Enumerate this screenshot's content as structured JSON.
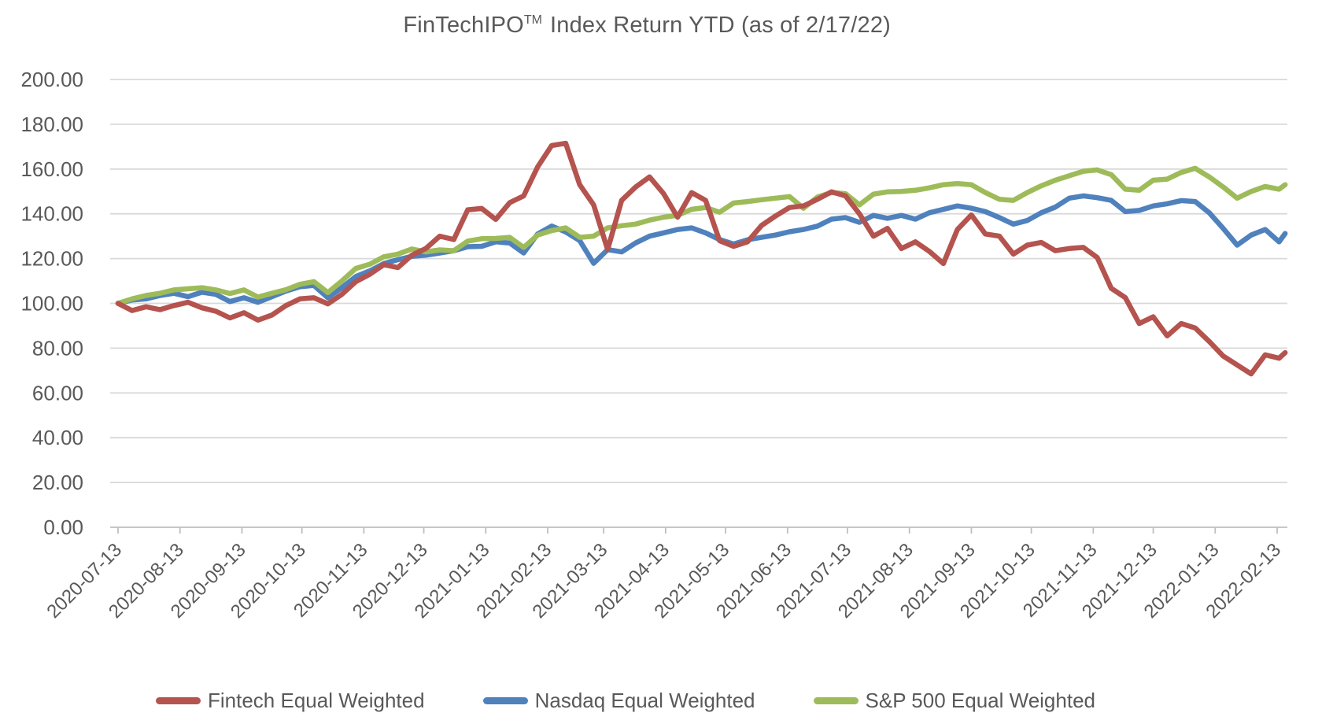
{
  "title": {
    "main": "FinTechIPO",
    "tm": "TM",
    "rest": "Index Return YTD (as of 2/17/22)"
  },
  "colors": {
    "fintech": "#B5534E",
    "nasdaq": "#4F81BD",
    "sp500": "#9EBB59",
    "gridline": "#D9D9D9",
    "axis_line": "#BFBFBF",
    "axis_text": "#595959",
    "background": "#FFFFFF"
  },
  "chart_data": {
    "type": "line",
    "title": "FinTechIPO(TM) Index Return YTD (as of 2/17/22)",
    "xlabel": "",
    "ylabel": "",
    "ylim": [
      0,
      200
    ],
    "grid": "horizontal",
    "legend_position": "bottom",
    "y_axis": {
      "min": 0,
      "max": 200,
      "step": 20,
      "tick_labels": [
        "0.00",
        "20.00",
        "40.00",
        "60.00",
        "80.00",
        "100.00",
        "120.00",
        "140.00",
        "160.00",
        "180.00",
        "200.00"
      ]
    },
    "x_axis": {
      "start_date": "2020-07-13",
      "end_date": "2022-02-17",
      "total_days": 584,
      "tick_labels": [
        "2020-07-13",
        "2020-08-13",
        "2020-09-13",
        "2020-10-13",
        "2020-11-13",
        "2020-12-13",
        "2021-01-13",
        "2021-02-13",
        "2021-03-13",
        "2021-04-13",
        "2021-05-13",
        "2021-06-13",
        "2021-07-13",
        "2021-08-13",
        "2021-09-13",
        "2021-10-13",
        "2021-11-13",
        "2021-12-13",
        "2022-01-13",
        "2022-02-13"
      ],
      "tick_day_offsets": [
        0,
        31,
        62,
        92,
        123,
        153,
        184,
        215,
        243,
        274,
        304,
        335,
        365,
        396,
        427,
        457,
        488,
        518,
        549,
        580
      ]
    },
    "sample_interval_days": 7,
    "series": [
      {
        "name": "Fintech Equal Weighted",
        "color": "#B5534E",
        "values": [
          100,
          96.8,
          98.5,
          97.2,
          99,
          100.5,
          98,
          96.5,
          93.5,
          95.8,
          92.5,
          94.8,
          99,
          102,
          102.5,
          99.8,
          104,
          109.7,
          113,
          117.3,
          116,
          121.5,
          124.5,
          130,
          128.5,
          141.8,
          142.4,
          137.5,
          145,
          148,
          161,
          170.5,
          171.5,
          153,
          144,
          124,
          146,
          152,
          156.5,
          149,
          138.5,
          149.5,
          146,
          128,
          125.5,
          127.5,
          134.8,
          139,
          142.8,
          143.5,
          146.5,
          149.8,
          148,
          140,
          130,
          133.5,
          124.5,
          127.5,
          123.2,
          117.8,
          133,
          139.5,
          131,
          130,
          122,
          126,
          127.2,
          123.5,
          124.5,
          125,
          120.5,
          106.7,
          102.6,
          91,
          94,
          85.5,
          91,
          89,
          83,
          76.5,
          72.5,
          68.5,
          77,
          75.5,
          78
        ]
      },
      {
        "name": "Nasdaq Equal Weighted",
        "color": "#4F81BD",
        "values": [
          100,
          101.5,
          102,
          103.5,
          104.5,
          103,
          105,
          104,
          100.8,
          102.5,
          100.5,
          103,
          105.5,
          107.4,
          108,
          102.5,
          107,
          112,
          114.5,
          117.8,
          119.5,
          121,
          121.5,
          122.5,
          123.5,
          125.3,
          125.5,
          127.5,
          127,
          122.5,
          131,
          134.5,
          131.9,
          128,
          117.9,
          124,
          123,
          127,
          130,
          131.5,
          133,
          133.7,
          131.5,
          128.5,
          126.5,
          128.4,
          129.5,
          130.5,
          132,
          133,
          134.5,
          137.6,
          138.3,
          136.2,
          139.3,
          138,
          139.3,
          137.6,
          140.5,
          142,
          143.5,
          142.5,
          141,
          138.3,
          135.4,
          137,
          140.5,
          143,
          147,
          148,
          147.2,
          146,
          141,
          141.5,
          143.5,
          144.5,
          145.9,
          145.5,
          140.5,
          133.5,
          126,
          130.5,
          133,
          127.5,
          131.2
        ]
      },
      {
        "name": "S&P 500 Equal Weighted",
        "color": "#9EBB59",
        "values": [
          100,
          102,
          103.5,
          104.5,
          106,
          106.5,
          107,
          106,
          104.4,
          106,
          102.8,
          104.5,
          106.1,
          108.5,
          109.7,
          104.8,
          110,
          115.6,
          117.5,
          120.8,
          122,
          124.3,
          123,
          123.9,
          123.5,
          127.8,
          128.9,
          129,
          129.5,
          125,
          130.5,
          132.5,
          133.7,
          129.5,
          130,
          133.7,
          134.7,
          135.4,
          137.2,
          138.5,
          139.3,
          142,
          142.8,
          140.7,
          144.8,
          145.5,
          146.3,
          147,
          147.7,
          142.5,
          147.5,
          149.5,
          149,
          144,
          148.8,
          149.8,
          150,
          150.5,
          151.6,
          153,
          153.5,
          153,
          149.5,
          146.5,
          146,
          149.5,
          152.5,
          155,
          157,
          159,
          159.6,
          157.5,
          151,
          150.5,
          155,
          155.5,
          158.5,
          160.3,
          156.5,
          152,
          147,
          150,
          152.2,
          151,
          153
        ]
      }
    ]
  },
  "legend": {
    "items": [
      {
        "label": "Fintech Equal Weighted",
        "color": "#B5534E"
      },
      {
        "label": "Nasdaq Equal Weighted",
        "color": "#4F81BD"
      },
      {
        "label": "S&P 500 Equal Weighted",
        "color": "#9EBB59"
      }
    ]
  }
}
